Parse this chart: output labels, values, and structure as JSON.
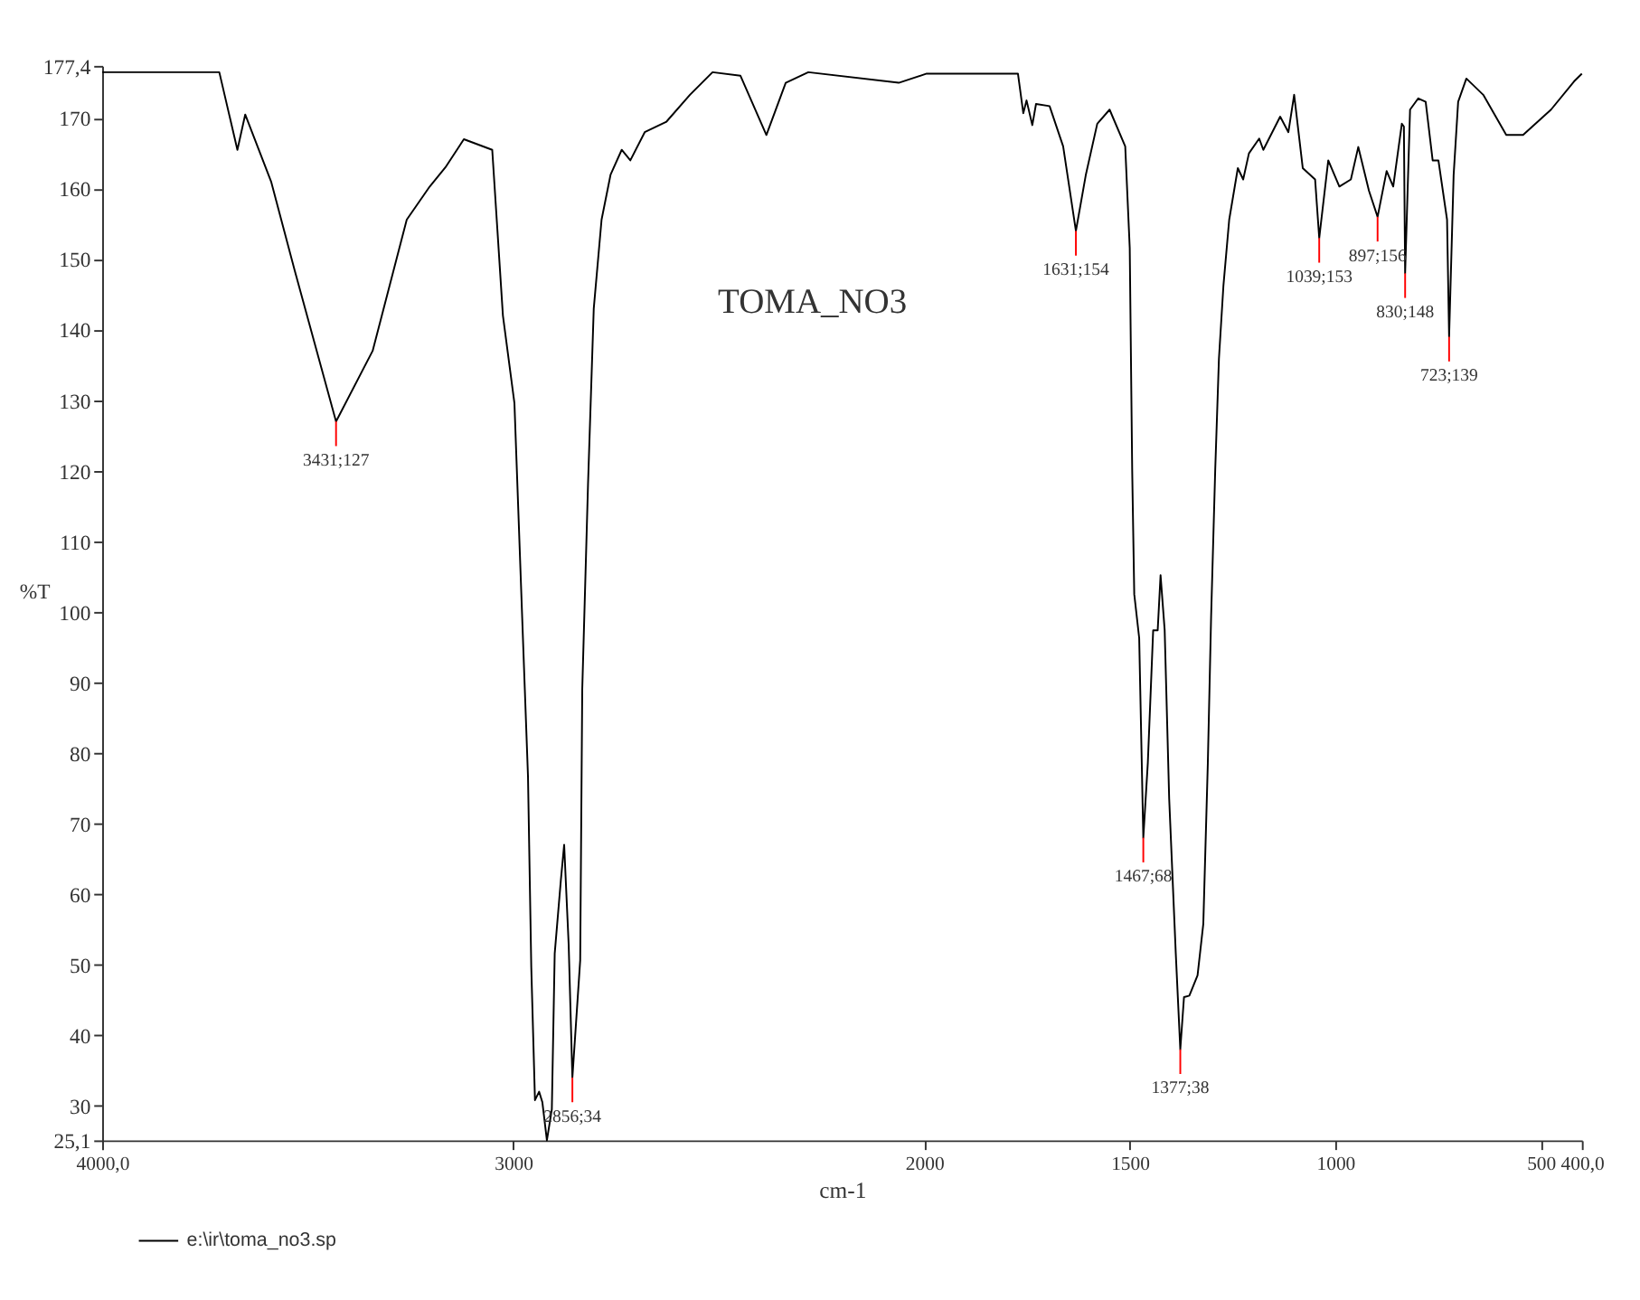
{
  "chart_data": {
    "type": "line",
    "title": "TOMA_NO3",
    "xlabel": "cm-1",
    "ylabel": "%T",
    "xlim": [
      4000,
      400
    ],
    "xticks": [
      {
        "value": 4000,
        "label": "4000,0"
      },
      3000,
      2000,
      1500,
      1000,
      500,
      {
        "value": 400,
        "label": "400,0"
      }
    ],
    "ylim": [
      25.1,
      177.4
    ],
    "yticks": [
      {
        "value": 25.1,
        "label": "25,1"
      },
      30,
      40,
      50,
      60,
      70,
      80,
      90,
      100,
      110,
      120,
      130,
      140,
      150,
      160,
      170,
      {
        "value": 177.4,
        "label": "177,4"
      }
    ],
    "grid": false,
    "legend": "bottom left",
    "marker": "none",
    "line_style": "solid",
    "series": [
      {
        "name": "e:\\ir\\toma_no3.sp",
        "color": "#000000",
        "x": [
          4000,
          3715,
          3671,
          3652,
          3589,
          3532,
          3431,
          3342,
          3259,
          3203,
          3165,
          3120,
          3051,
          3025,
          2997,
          2978,
          2964,
          2956,
          2947,
          2937,
          2929,
          2918,
          2906,
          2899,
          2884,
          2876,
          2865,
          2856,
          2837,
          2832,
          2818,
          2804,
          2785,
          2763,
          2736,
          2715,
          2680,
          2627,
          2570,
          2515,
          2447,
          2384,
          2337,
          2282,
          2062,
          1994,
          1772,
          1759,
          1751,
          1737,
          1728,
          1695,
          1662,
          1631,
          1607,
          1579,
          1549,
          1511,
          1500,
          1494,
          1489,
          1477,
          1467,
          1456,
          1443,
          1432,
          1425,
          1415,
          1404,
          1388,
          1377,
          1368,
          1355,
          1335,
          1321,
          1310,
          1302,
          1292,
          1283,
          1272,
          1258,
          1237,
          1224,
          1210,
          1185,
          1175,
          1134,
          1114,
          1100,
          1079,
          1049,
          1039,
          1017,
          990,
          962,
          944,
          918,
          897,
          875,
          859,
          838,
          833,
          830,
          818,
          798,
          780,
          763,
          749,
          728,
          723,
          712,
          701,
          681,
          640,
          584,
          543,
          475,
          419,
          400
        ],
        "values": [
          176.5,
          176.5,
          165.5,
          170.5,
          161,
          148.5,
          127,
          137,
          155.6,
          160.3,
          163,
          167,
          165.5,
          142,
          129.6,
          99,
          76.7,
          49.6,
          30.8,
          32,
          30.5,
          25.1,
          29.5,
          51.6,
          62,
          67,
          52.8,
          34,
          50.6,
          89,
          118,
          143,
          155.6,
          162,
          165.5,
          164,
          168,
          169.5,
          173.3,
          176.5,
          176,
          167.6,
          175,
          176.5,
          175,
          176.3,
          176.3,
          170.7,
          172.5,
          169,
          172,
          171.7,
          166,
          154,
          161.9,
          169.2,
          171.2,
          166,
          151.6,
          120,
          102.5,
          96.3,
          68,
          78.6,
          97.4,
          97.4,
          105.2,
          97.4,
          73.5,
          51.6,
          38,
          45.4,
          45.6,
          48.5,
          55.8,
          78.6,
          99.4,
          120.2,
          135.9,
          146.3,
          155.6,
          162.9,
          161.3,
          165,
          167.1,
          165.5,
          170.2,
          168,
          173.3,
          162.9,
          161.3,
          153,
          164,
          160.3,
          161.3,
          165.9,
          159.7,
          156,
          162.5,
          160.3,
          169.2,
          168.8,
          148,
          171.2,
          172.8,
          172.3,
          164,
          164,
          155.6,
          139,
          161.9,
          172.3,
          175.6,
          173.3,
          167.6,
          167.6,
          171.2,
          175.2,
          176.3
        ]
      }
    ],
    "annotations": [
      {
        "text": "3431;127",
        "x": 3431,
        "y": 127
      },
      {
        "text": "2856;34",
        "x": 2856,
        "y": 34
      },
      {
        "text": "1631;154",
        "x": 1631,
        "y": 154
      },
      {
        "text": "1467;68",
        "x": 1467,
        "y": 68
      },
      {
        "text": "1377;38",
        "x": 1377,
        "y": 38
      },
      {
        "text": "1039;153",
        "x": 1039,
        "y": 153
      },
      {
        "text": "897;156",
        "x": 897,
        "y": 156
      },
      {
        "text": "830;148",
        "x": 830,
        "y": 148
      },
      {
        "text": "723;139",
        "x": 723,
        "y": 139
      }
    ]
  }
}
